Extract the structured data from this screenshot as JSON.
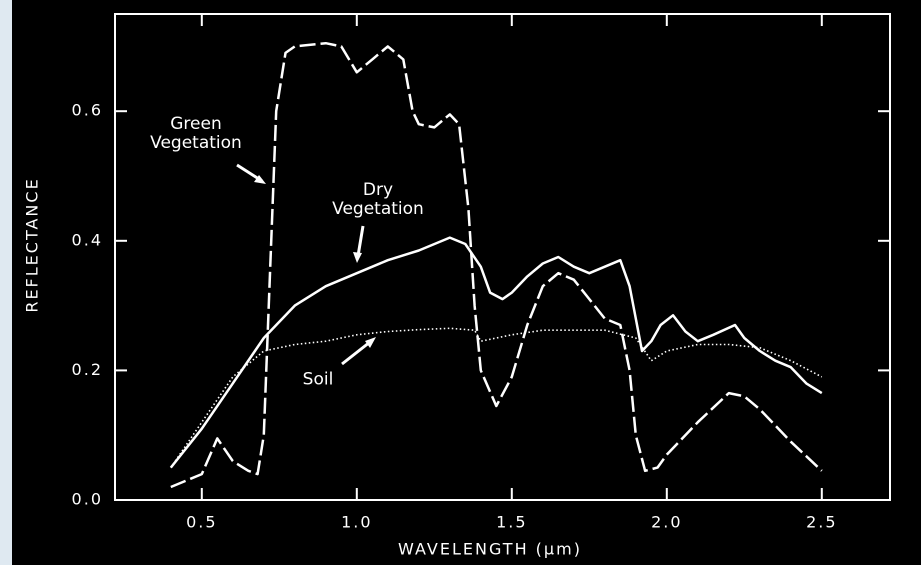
{
  "chart_data": {
    "type": "line",
    "xlabel": "WAVELENGTH (μm)",
    "ylabel": "REFLECTANCE",
    "xlim": [
      0.22,
      2.72
    ],
    "ylim": [
      0,
      0.75
    ],
    "xticks": [
      0.5,
      {
        "value": 1,
        "label": "1.0"
      },
      1.5,
      {
        "value": 2,
        "label": "2.0"
      },
      2.5
    ],
    "yticks": [
      {
        "value": 0,
        "label": "0.0"
      },
      0.2,
      0.4,
      0.6
    ],
    "series": [
      {
        "name": "Green Vegetation",
        "color": "#ffffff",
        "style": "dashed",
        "x": [
          0.4,
          0.5,
          0.55,
          0.6,
          0.65,
          0.68,
          0.7,
          0.72,
          0.74,
          0.77,
          0.8,
          0.9,
          0.95,
          1.0,
          1.05,
          1.1,
          1.15,
          1.18,
          1.2,
          1.25,
          1.3,
          1.33,
          1.36,
          1.38,
          1.4,
          1.45,
          1.5,
          1.55,
          1.6,
          1.65,
          1.7,
          1.75,
          1.8,
          1.85,
          1.88,
          1.9,
          1.93,
          1.97,
          2.0,
          2.1,
          2.2,
          2.25,
          2.3,
          2.4,
          2.5
        ],
        "values": [
          0.02,
          0.04,
          0.095,
          0.06,
          0.045,
          0.04,
          0.1,
          0.35,
          0.6,
          0.69,
          0.7,
          0.705,
          0.7,
          0.66,
          0.68,
          0.7,
          0.68,
          0.6,
          0.58,
          0.575,
          0.595,
          0.58,
          0.45,
          0.3,
          0.2,
          0.145,
          0.19,
          0.27,
          0.33,
          0.35,
          0.34,
          0.31,
          0.28,
          0.27,
          0.2,
          0.1,
          0.045,
          0.05,
          0.07,
          0.12,
          0.165,
          0.16,
          0.14,
          0.09,
          0.045
        ]
      },
      {
        "name": "Dry Vegetation",
        "color": "#ffffff",
        "style": "solid",
        "x": [
          0.4,
          0.5,
          0.6,
          0.7,
          0.8,
          0.9,
          1.0,
          1.1,
          1.2,
          1.3,
          1.35,
          1.4,
          1.43,
          1.47,
          1.5,
          1.55,
          1.6,
          1.65,
          1.7,
          1.75,
          1.8,
          1.85,
          1.88,
          1.92,
          1.95,
          1.98,
          2.02,
          2.06,
          2.1,
          2.15,
          2.22,
          2.25,
          2.3,
          2.35,
          2.4,
          2.45,
          2.5
        ],
        "values": [
          0.05,
          0.11,
          0.18,
          0.25,
          0.3,
          0.33,
          0.35,
          0.37,
          0.385,
          0.405,
          0.395,
          0.36,
          0.32,
          0.31,
          0.32,
          0.345,
          0.365,
          0.375,
          0.36,
          0.35,
          0.36,
          0.37,
          0.33,
          0.23,
          0.245,
          0.27,
          0.285,
          0.26,
          0.245,
          0.255,
          0.27,
          0.25,
          0.23,
          0.215,
          0.205,
          0.18,
          0.165
        ]
      },
      {
        "name": "Soil",
        "color": "#ffffff",
        "style": "dotted",
        "x": [
          0.4,
          0.5,
          0.6,
          0.7,
          0.8,
          0.9,
          1.0,
          1.1,
          1.2,
          1.3,
          1.38,
          1.4,
          1.5,
          1.6,
          1.7,
          1.8,
          1.9,
          1.95,
          2.0,
          2.1,
          2.2,
          2.3,
          2.4,
          2.5
        ],
        "values": [
          0.05,
          0.12,
          0.19,
          0.23,
          0.24,
          0.245,
          0.255,
          0.26,
          0.263,
          0.265,
          0.262,
          0.245,
          0.255,
          0.262,
          0.262,
          0.262,
          0.25,
          0.215,
          0.23,
          0.24,
          0.24,
          0.235,
          0.215,
          0.19
        ]
      }
    ]
  }
}
